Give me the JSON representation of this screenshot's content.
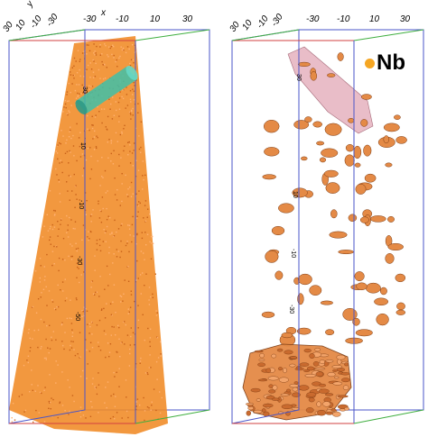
{
  "colors": {
    "atom": "#f08a24",
    "atom_dark": "#c8611a",
    "iso_surface": "#e48a46",
    "iso_edge": "#7a3a12",
    "grain_boundary": "#e8b8c4",
    "roi_cylinder": "#3fbfa8",
    "box_blue": "#4a55c8",
    "box_green": "#3fae3f",
    "box_red": "#d24040"
  },
  "axes": {
    "x_label": "x",
    "x_ticks": [
      "-30",
      "-10",
      "10",
      "30"
    ],
    "y_label": "y",
    "y_ticks": [
      "30",
      "10",
      "-10",
      "-30"
    ],
    "z_ticks": [
      "30",
      "10",
      "-10",
      "-30",
      "-50"
    ]
  },
  "legend": {
    "label": "Nb",
    "color": "#f5a623",
    "icon": "circle-icon"
  }
}
